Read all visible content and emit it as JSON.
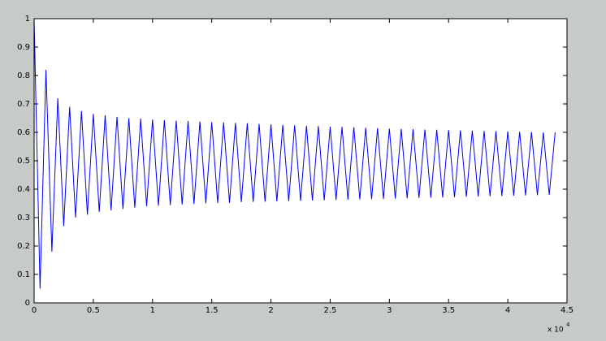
{
  "chart_data": {
    "type": "line",
    "color": "#0000ff",
    "box": true,
    "grid": false,
    "x": [
      0,
      500,
      1000,
      1500,
      2000,
      2500,
      3000,
      3500,
      4000,
      4500,
      5000,
      5500,
      6000,
      6500,
      7000,
      7500,
      8000,
      8500,
      9000,
      9500,
      10000,
      10500,
      11000,
      11500,
      12000,
      12500,
      13000,
      13500,
      14000,
      14500,
      15000,
      15500,
      16000,
      16500,
      17000,
      17500,
      18000,
      18500,
      19000,
      19500,
      20000,
      20500,
      21000,
      21500,
      22000,
      22500,
      23000,
      23500,
      24000,
      24500,
      25000,
      25500,
      26000,
      26500,
      27000,
      27500,
      28000,
      28500,
      29000,
      29500,
      30000,
      30500,
      31000,
      31500,
      32000,
      32500,
      33000,
      33500,
      34000,
      34500,
      35000,
      35500,
      36000,
      36500,
      37000,
      37500,
      38000,
      38500,
      39000,
      39500,
      40000,
      40500,
      41000,
      41500,
      42000,
      42500,
      43000,
      43500,
      44000
    ],
    "values": [
      1.0,
      0.05,
      0.82,
      0.18,
      0.72,
      0.27,
      0.69,
      0.3,
      0.675,
      0.31,
      0.665,
      0.32,
      0.66,
      0.325,
      0.655,
      0.33,
      0.65,
      0.335,
      0.648,
      0.34,
      0.645,
      0.342,
      0.643,
      0.344,
      0.641,
      0.346,
      0.64,
      0.348,
      0.638,
      0.35,
      0.636,
      0.351,
      0.635,
      0.352,
      0.633,
      0.354,
      0.632,
      0.355,
      0.63,
      0.356,
      0.628,
      0.357,
      0.626,
      0.358,
      0.625,
      0.359,
      0.623,
      0.36,
      0.622,
      0.361,
      0.62,
      0.362,
      0.619,
      0.363,
      0.618,
      0.364,
      0.616,
      0.365,
      0.615,
      0.366,
      0.613,
      0.367,
      0.612,
      0.368,
      0.611,
      0.369,
      0.61,
      0.37,
      0.609,
      0.371,
      0.608,
      0.372,
      0.607,
      0.373,
      0.606,
      0.374,
      0.605,
      0.375,
      0.604,
      0.376,
      0.603,
      0.377,
      0.602,
      0.378,
      0.601,
      0.379,
      0.6,
      0.38,
      0.6
    ],
    "xlim": [
      0,
      45000
    ],
    "xticks": [
      0,
      {
        "value": 5000,
        "label": "0.5"
      },
      {
        "value": 10000,
        "label": "1"
      },
      {
        "value": 15000,
        "label": "1.5"
      },
      {
        "value": 20000,
        "label": "2"
      },
      {
        "value": 25000,
        "label": "2.5"
      },
      {
        "value": 30000,
        "label": "3"
      },
      {
        "value": 35000,
        "label": "3.5"
      },
      {
        "value": 40000,
        "label": "4"
      },
      {
        "value": 45000,
        "label": "4.5"
      }
    ],
    "x_multiplier": {
      "text": "x 10",
      "exponent": 4
    },
    "ylim": [
      0,
      1
    ],
    "yticks": [
      0,
      0.1,
      0.2,
      0.3,
      0.4,
      0.5,
      0.6,
      0.7,
      0.8,
      0.9,
      1
    ]
  }
}
